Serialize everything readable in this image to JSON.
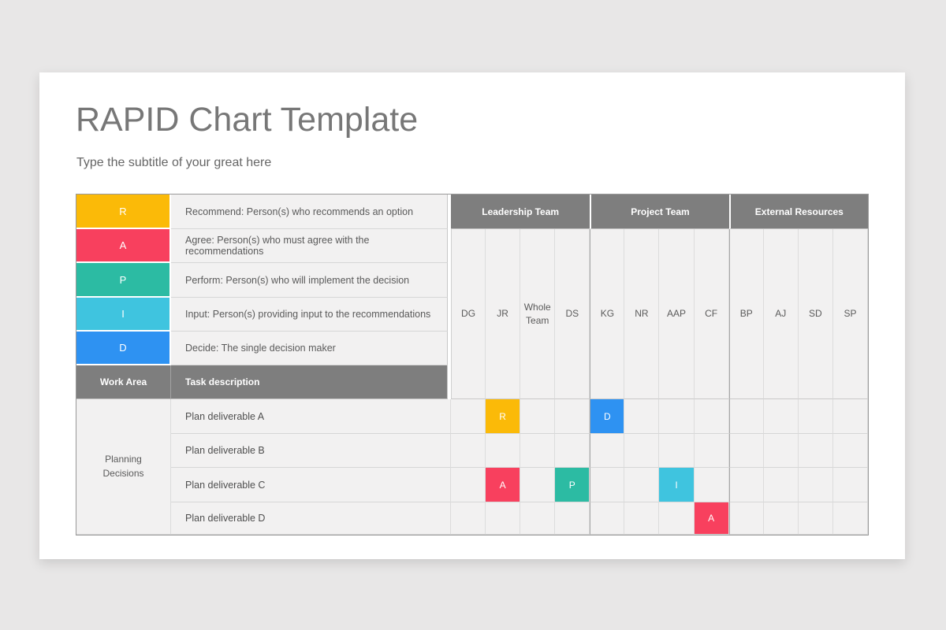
{
  "slide": {
    "title": "RAPID Chart Template",
    "subtitle": "Type the subtitle of your great here"
  },
  "colors": {
    "R": "#fbba08",
    "A": "#f8405e",
    "P": "#2cbba3",
    "I": "#3fc4df",
    "D": "#2e92f2",
    "header_gray": "#7e7e7e",
    "cell_bg": "#f2f1f1"
  },
  "legend": [
    {
      "letter": "R",
      "description": "Recommend: Person(s) who recommends an option"
    },
    {
      "letter": "A",
      "description": "Agree: Person(s) who must agree with the recommendations"
    },
    {
      "letter": "P",
      "description": "Perform: Person(s) who will implement the decision"
    },
    {
      "letter": "I",
      "description": "Input: Person(s) providing input to the recommendations"
    },
    {
      "letter": "D",
      "description": "Decide: The single decision maker"
    }
  ],
  "table": {
    "headers": {
      "work_area": "Work Area",
      "task_description": "Task description"
    },
    "groups": [
      {
        "label": "Leadership Team",
        "members": [
          "DG",
          "JR",
          "Whole Team",
          "DS"
        ]
      },
      {
        "label": "Project Team",
        "members": [
          "KG",
          "NR",
          "AAP",
          "CF"
        ]
      },
      {
        "label": "External Resources",
        "members": [
          "BP",
          "AJ",
          "SD",
          "SP"
        ]
      }
    ],
    "work_area_label": "Planning Decisions",
    "rows": [
      {
        "task": "Plan deliverable A",
        "assignments": [
          {
            "member": "JR",
            "letter": "R"
          },
          {
            "member": "KG",
            "letter": "D"
          }
        ]
      },
      {
        "task": "Plan deliverable B",
        "assignments": []
      },
      {
        "task": "Plan deliverable C",
        "assignments": [
          {
            "member": "JR",
            "letter": "A"
          },
          {
            "member": "DS",
            "letter": "P"
          },
          {
            "member": "AAP",
            "letter": "I"
          }
        ]
      },
      {
        "task": "Plan deliverable D",
        "assignments": [
          {
            "member": "CF",
            "letter": "A"
          }
        ]
      }
    ]
  }
}
